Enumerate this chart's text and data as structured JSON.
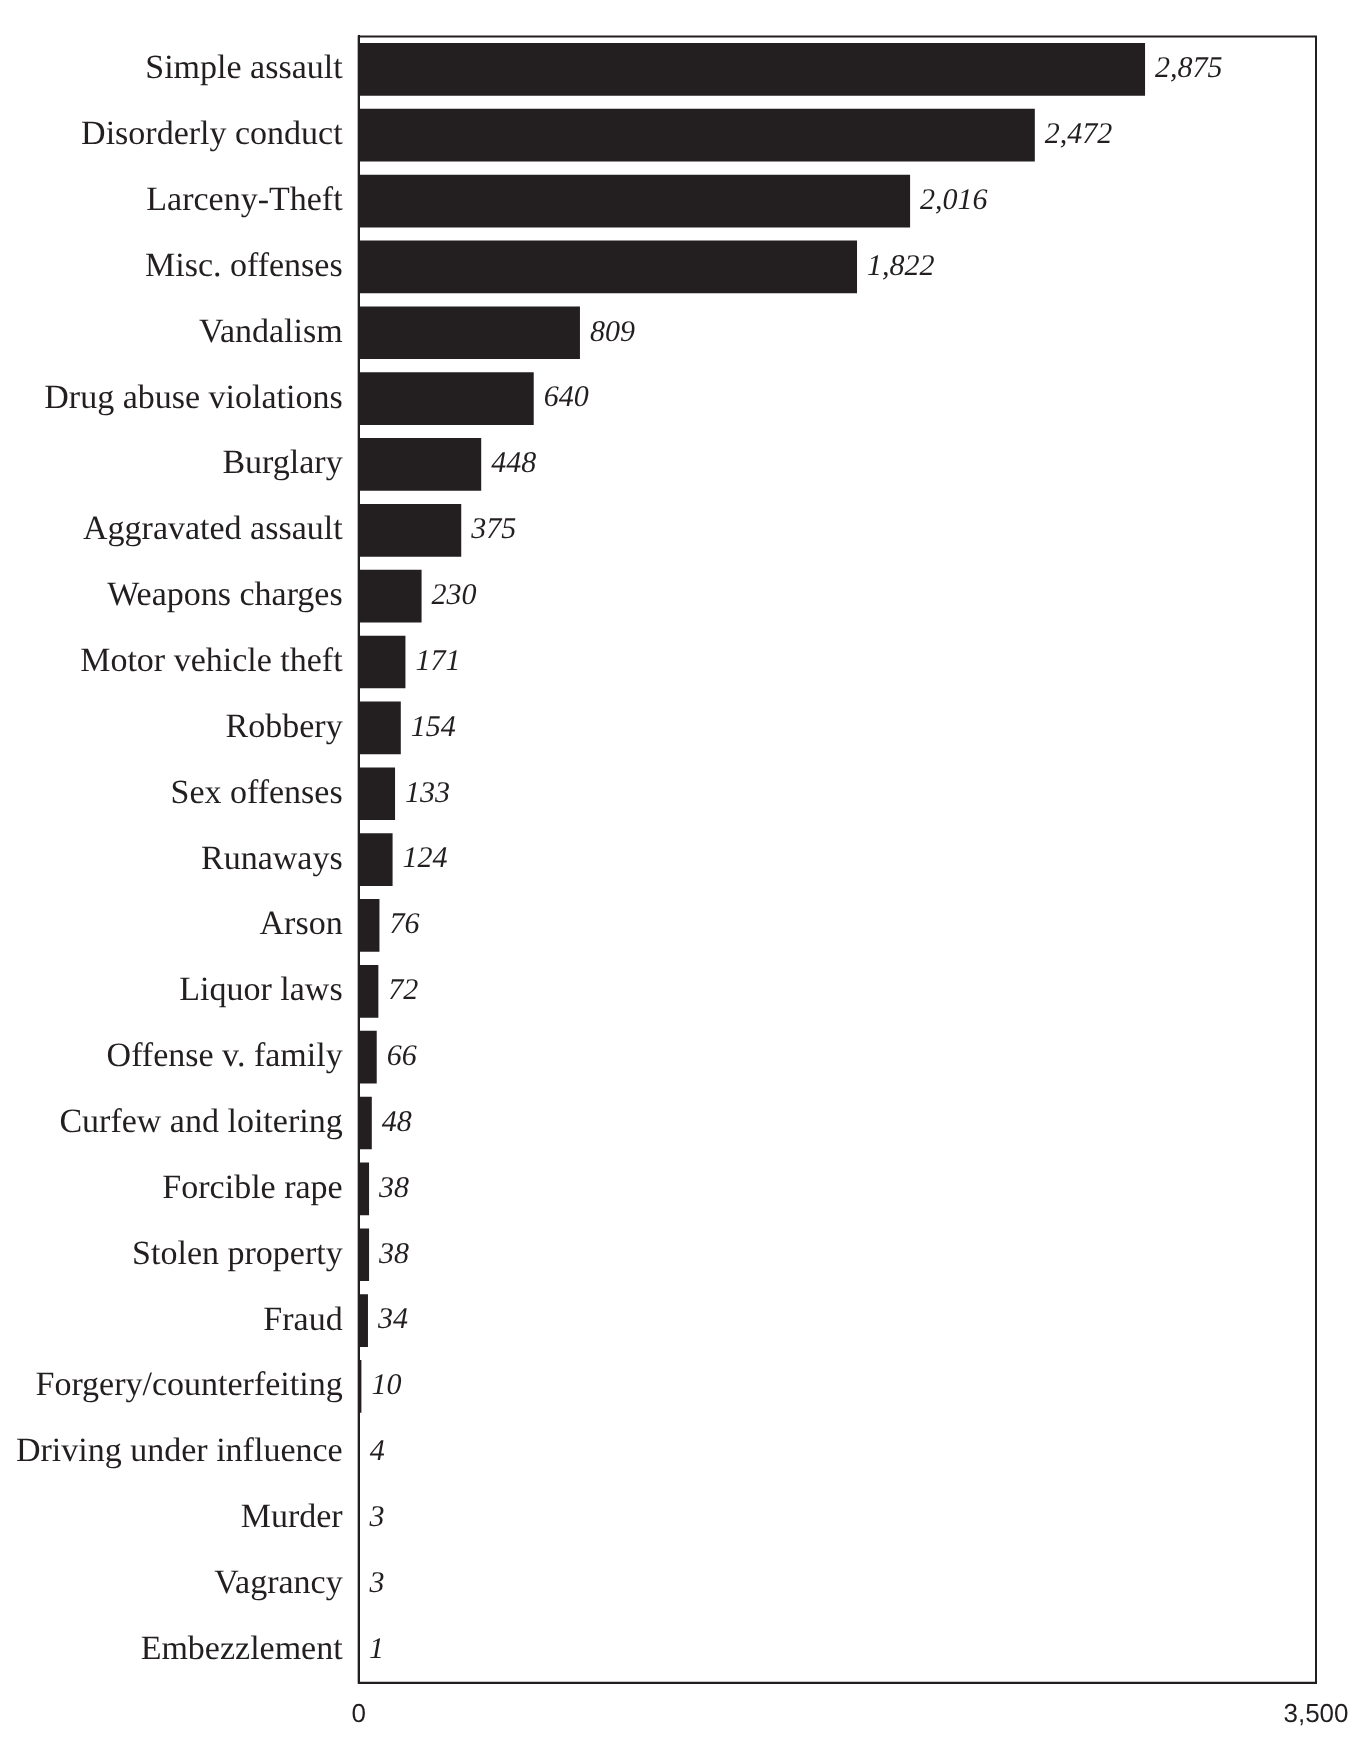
{
  "chart_data": {
    "type": "bar",
    "orientation": "horizontal",
    "categories": [
      "Simple assault",
      "Disorderly conduct",
      "Larceny-Theft",
      "Misc. offenses",
      "Vandalism",
      "Drug abuse violations",
      "Burglary",
      "Aggravated assault",
      "Weapons charges",
      "Motor vehicle theft",
      "Robbery",
      "Sex offenses",
      "Runaways",
      "Arson",
      "Liquor laws",
      "Offense v. family",
      "Curfew and loitering",
      "Forcible rape",
      "Stolen property",
      "Fraud",
      "Forgery/counterfeiting",
      "Driving under influence",
      "Murder",
      "Vagrancy",
      "Embezzlement"
    ],
    "values": [
      2875,
      2472,
      2016,
      1822,
      809,
      640,
      448,
      375,
      230,
      171,
      154,
      133,
      124,
      76,
      72,
      66,
      48,
      38,
      38,
      34,
      10,
      4,
      3,
      3,
      1
    ],
    "value_labels": [
      "2,875",
      "2,472",
      "2,016",
      "1,822",
      "809",
      "640",
      "448",
      "375",
      "230",
      "171",
      "154",
      "133",
      "124",
      "76",
      "72",
      "66",
      "48",
      "38",
      "38",
      "34",
      "10",
      "4",
      "3",
      "3",
      "1"
    ],
    "color": "#231f20",
    "xlim": [
      0,
      3500
    ],
    "xticks": [
      0,
      {
        "value": 3500,
        "label": "3,500"
      }
    ],
    "grid": false,
    "legend": false
  }
}
